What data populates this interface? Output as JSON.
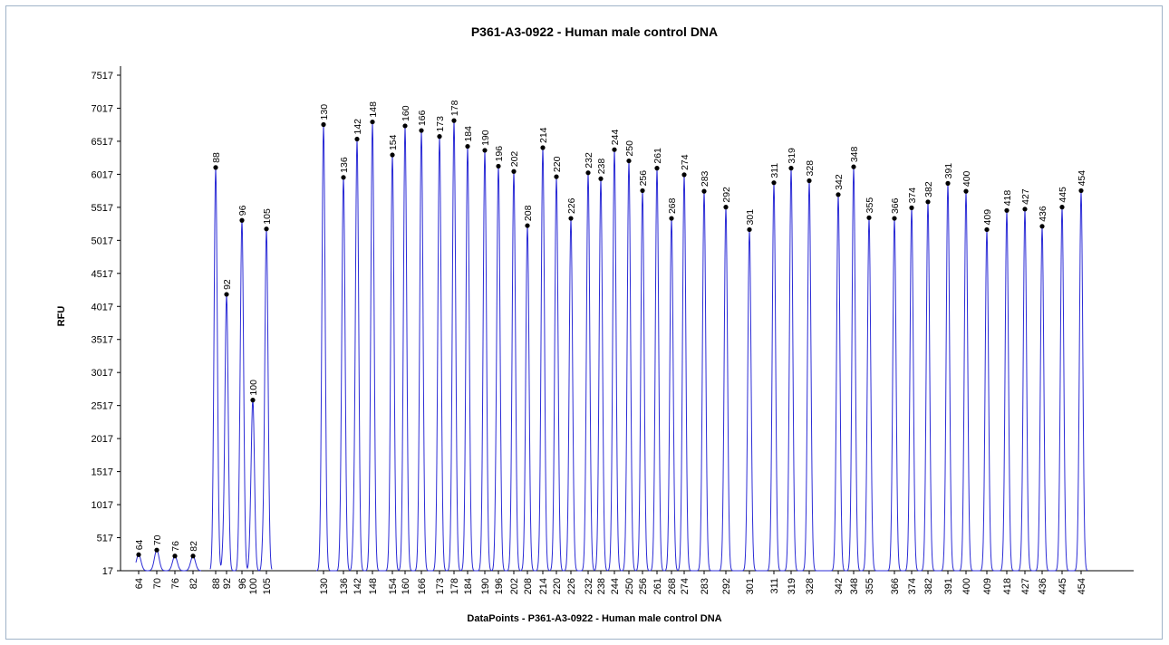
{
  "chart_data": {
    "type": "line",
    "title": "P361-A3-0922 - Human male control DNA",
    "xlabel": "DataPoints - P361-A3-0922 - Human male control DNA",
    "ylabel": "RFU",
    "ylim": [
      17,
      7517
    ],
    "yticks": [
      17,
      517,
      1017,
      1517,
      2017,
      2517,
      3017,
      3517,
      4017,
      4517,
      5017,
      5517,
      6017,
      6517,
      7017,
      7517
    ],
    "grid": false,
    "line_color": "#2b2bd6",
    "marker_color": "#000000",
    "series": [
      {
        "name": "",
        "peaks": [
          {
            "label": "64",
            "rfu": 260
          },
          {
            "label": "70",
            "rfu": 330
          },
          {
            "label": "76",
            "rfu": 240
          },
          {
            "label": "82",
            "rfu": 240
          },
          {
            "label": "88",
            "rfu": 6120
          },
          {
            "label": "92",
            "rfu": 4200
          },
          {
            "label": "96",
            "rfu": 5320
          },
          {
            "label": "100",
            "rfu": 2600
          },
          {
            "label": "105",
            "rfu": 5190
          },
          {
            "label": "130",
            "rfu": 6770
          },
          {
            "label": "136",
            "rfu": 5970
          },
          {
            "label": "142",
            "rfu": 6550
          },
          {
            "label": "148",
            "rfu": 6810
          },
          {
            "label": "154",
            "rfu": 6310
          },
          {
            "label": "160",
            "rfu": 6750
          },
          {
            "label": "166",
            "rfu": 6680
          },
          {
            "label": "173",
            "rfu": 6590
          },
          {
            "label": "178",
            "rfu": 6830
          },
          {
            "label": "184",
            "rfu": 6440
          },
          {
            "label": "190",
            "rfu": 6380
          },
          {
            "label": "196",
            "rfu": 6140
          },
          {
            "label": "202",
            "rfu": 6060
          },
          {
            "label": "208",
            "rfu": 5240
          },
          {
            "label": "214",
            "rfu": 6420
          },
          {
            "label": "220",
            "rfu": 5980
          },
          {
            "label": "226",
            "rfu": 5350
          },
          {
            "label": "232",
            "rfu": 6040
          },
          {
            "label": "238",
            "rfu": 5950
          },
          {
            "label": "244",
            "rfu": 6390
          },
          {
            "label": "250",
            "rfu": 6220
          },
          {
            "label": "256",
            "rfu": 5770
          },
          {
            "label": "261",
            "rfu": 6110
          },
          {
            "label": "268",
            "rfu": 5350
          },
          {
            "label": "274",
            "rfu": 6010
          },
          {
            "label": "283",
            "rfu": 5760
          },
          {
            "label": "292",
            "rfu": 5520
          },
          {
            "label": "301",
            "rfu": 5180
          },
          {
            "label": "311",
            "rfu": 5890
          },
          {
            "label": "319",
            "rfu": 6110
          },
          {
            "label": "328",
            "rfu": 5920
          },
          {
            "label": "342",
            "rfu": 5710
          },
          {
            "label": "348",
            "rfu": 6130
          },
          {
            "label": "355",
            "rfu": 5360
          },
          {
            "label": "366",
            "rfu": 5350
          },
          {
            "label": "374",
            "rfu": 5510
          },
          {
            "label": "382",
            "rfu": 5600
          },
          {
            "label": "391",
            "rfu": 5880
          },
          {
            "label": "400",
            "rfu": 5760
          },
          {
            "label": "409",
            "rfu": 5180
          },
          {
            "label": "418",
            "rfu": 5470
          },
          {
            "label": "427",
            "rfu": 5490
          },
          {
            "label": "436",
            "rfu": 5230
          },
          {
            "label": "445",
            "rfu": 5520
          },
          {
            "label": "454",
            "rfu": 5770
          }
        ]
      }
    ]
  }
}
